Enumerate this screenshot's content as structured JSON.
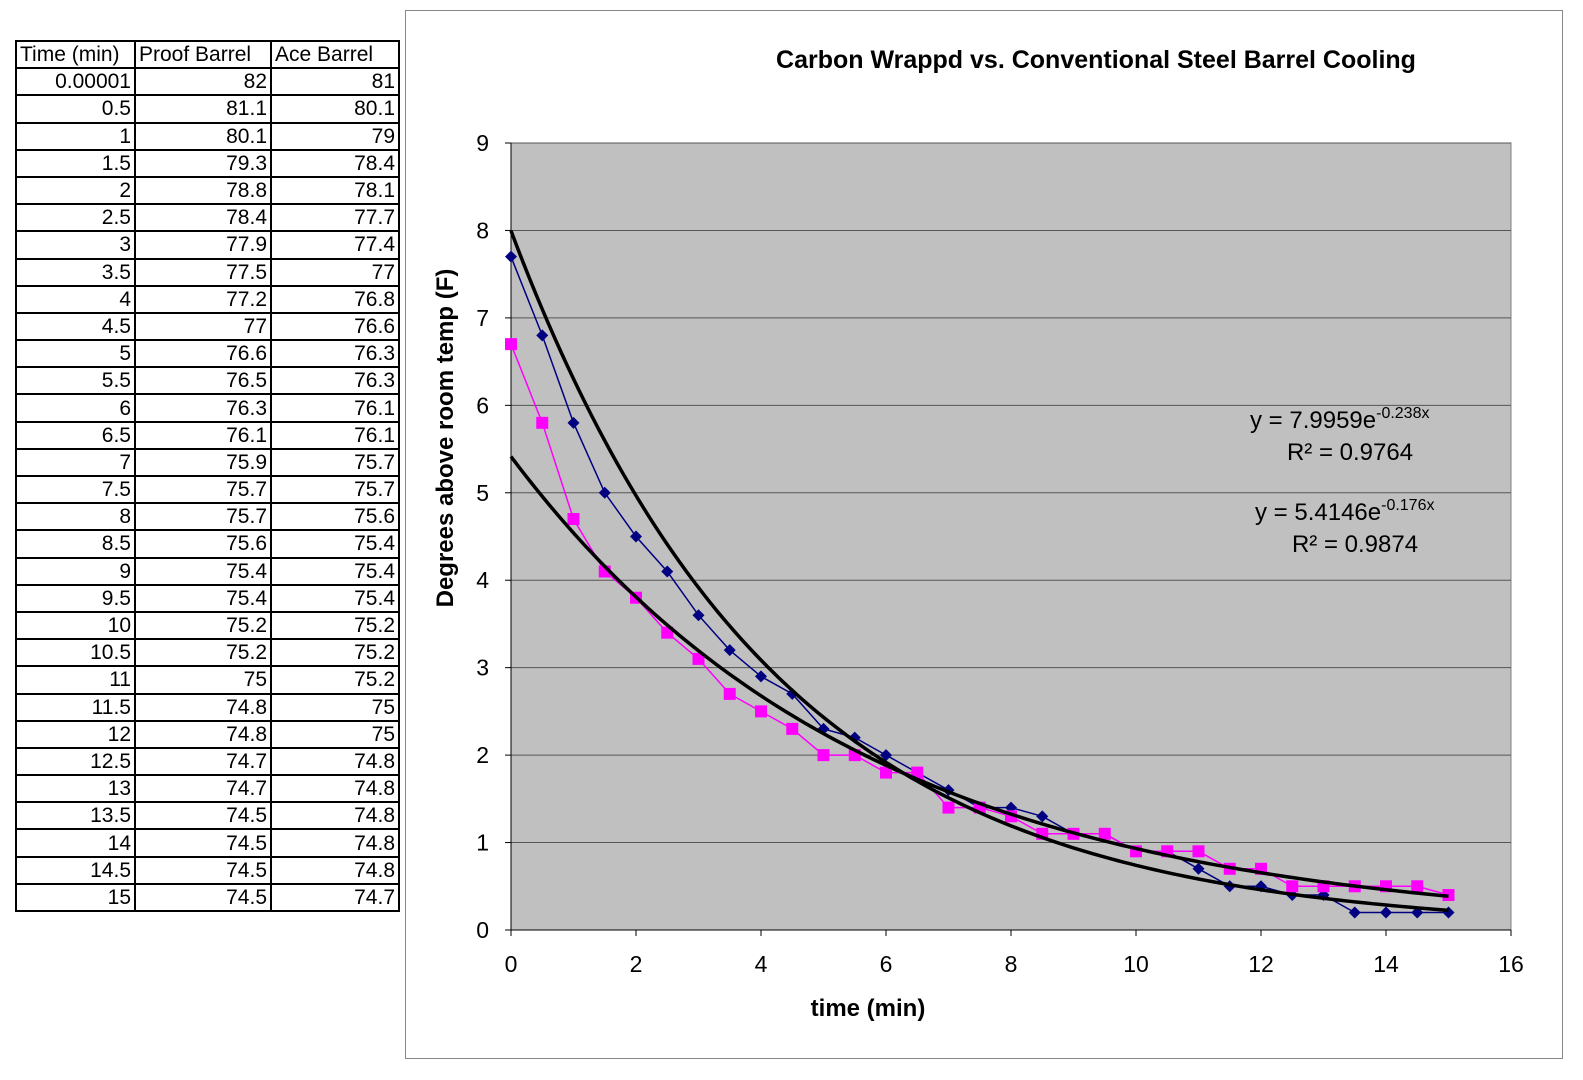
{
  "table": {
    "headers": [
      "Time (min)",
      "Proof Barrel",
      "Ace Barrel"
    ],
    "rows": [
      [
        "0.00001",
        "82",
        "81"
      ],
      [
        "0.5",
        "81.1",
        "80.1"
      ],
      [
        "1",
        "80.1",
        "79"
      ],
      [
        "1.5",
        "79.3",
        "78.4"
      ],
      [
        "2",
        "78.8",
        "78.1"
      ],
      [
        "2.5",
        "78.4",
        "77.7"
      ],
      [
        "3",
        "77.9",
        "77.4"
      ],
      [
        "3.5",
        "77.5",
        "77"
      ],
      [
        "4",
        "77.2",
        "76.8"
      ],
      [
        "4.5",
        "77",
        "76.6"
      ],
      [
        "5",
        "76.6",
        "76.3"
      ],
      [
        "5.5",
        "76.5",
        "76.3"
      ],
      [
        "6",
        "76.3",
        "76.1"
      ],
      [
        "6.5",
        "76.1",
        "76.1"
      ],
      [
        "7",
        "75.9",
        "75.7"
      ],
      [
        "7.5",
        "75.7",
        "75.7"
      ],
      [
        "8",
        "75.7",
        "75.6"
      ],
      [
        "8.5",
        "75.6",
        "75.4"
      ],
      [
        "9",
        "75.4",
        "75.4"
      ],
      [
        "9.5",
        "75.4",
        "75.4"
      ],
      [
        "10",
        "75.2",
        "75.2"
      ],
      [
        "10.5",
        "75.2",
        "75.2"
      ],
      [
        "11",
        "75",
        "75.2"
      ],
      [
        "11.5",
        "74.8",
        "75"
      ],
      [
        "12",
        "74.8",
        "75"
      ],
      [
        "12.5",
        "74.7",
        "74.8"
      ],
      [
        "13",
        "74.7",
        "74.8"
      ],
      [
        "13.5",
        "74.5",
        "74.8"
      ],
      [
        "14",
        "74.5",
        "74.8"
      ],
      [
        "14.5",
        "74.5",
        "74.8"
      ],
      [
        "15",
        "74.5",
        "74.7"
      ]
    ]
  },
  "chart_data": {
    "type": "scatter",
    "title": "Carbon Wrappd vs. Conventional Steel Barrel Cooling",
    "xlabel": "time (min)",
    "ylabel": "Degrees above room temp (F)",
    "xlim": [
      0,
      16
    ],
    "ylim": [
      0,
      9
    ],
    "xticks": [
      0,
      2,
      4,
      6,
      8,
      10,
      12,
      14,
      16
    ],
    "yticks": [
      0,
      1,
      2,
      3,
      4,
      5,
      6,
      7,
      8,
      9
    ],
    "grid": true,
    "plot_background": "#c0c0c0",
    "x": [
      0,
      0.5,
      1,
      1.5,
      2,
      2.5,
      3,
      3.5,
      4,
      4.5,
      5,
      5.5,
      6,
      6.5,
      7,
      7.5,
      8,
      8.5,
      9,
      9.5,
      10,
      10.5,
      11,
      11.5,
      12,
      12.5,
      13,
      13.5,
      14,
      14.5,
      15
    ],
    "series": [
      {
        "color": "#000080",
        "marker": "diamond",
        "values": [
          7.7,
          6.8,
          5.8,
          5.0,
          4.5,
          4.1,
          3.6,
          3.2,
          2.9,
          2.7,
          2.3,
          2.2,
          2.0,
          1.8,
          1.6,
          1.4,
          1.4,
          1.3,
          1.1,
          1.1,
          0.9,
          0.9,
          0.7,
          0.5,
          0.5,
          0.4,
          0.4,
          0.2,
          0.2,
          0.2,
          0.2
        ]
      },
      {
        "color": "#ff00ff",
        "marker": "square",
        "values": [
          6.7,
          5.8,
          4.7,
          4.1,
          3.8,
          3.4,
          3.1,
          2.7,
          2.5,
          2.3,
          2.0,
          2.0,
          1.8,
          1.8,
          1.4,
          1.4,
          1.3,
          1.1,
          1.1,
          1.1,
          0.9,
          0.9,
          0.9,
          0.7,
          0.7,
          0.5,
          0.5,
          0.5,
          0.5,
          0.5,
          0.4
        ]
      }
    ],
    "trendlines": [
      {
        "a": 7.9959,
        "b": -0.238,
        "equation": "y = 7.9959e",
        "exponent": "-0.238x",
        "r2": "R² = 0.9764"
      },
      {
        "a": 5.4146,
        "b": -0.176,
        "equation": "y = 5.4146e",
        "exponent": "-0.176x",
        "r2": "R² = 0.9874"
      }
    ]
  }
}
